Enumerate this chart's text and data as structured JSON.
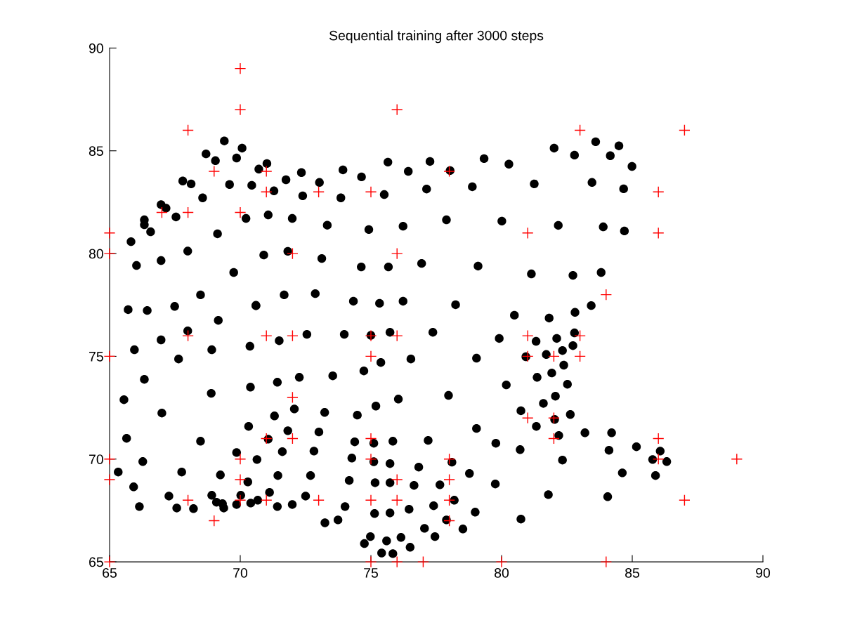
{
  "chart_data": {
    "type": "scatter",
    "title": "Sequential training after 3000 steps",
    "xlim": [
      65,
      90
    ],
    "ylim": [
      65,
      90
    ],
    "xticks": [
      65,
      70,
      75,
      80,
      85,
      90
    ],
    "yticks": [
      65,
      70,
      75,
      80,
      85,
      90
    ],
    "grid": false,
    "series": [
      {
        "color": "#000000",
        "marker": "circle",
        "x": [
          69.39,
          70.07,
          68.69,
          69.05,
          69.86,
          71.02,
          70.71,
          72.34,
          71.75,
          73.03,
          67.8,
          68.12,
          69.59,
          70.44,
          71.29,
          72.39,
          68.56,
          66.97,
          67.16,
          67.54,
          70.22,
          71.07,
          71.99,
          66.33,
          66.33,
          66.57,
          65.82,
          69.13,
          66.03,
          66.97,
          67.99,
          70.9,
          71.82,
          73.12,
          69.75,
          68.48,
          70.6,
          71.68,
          72.87,
          73.33,
          73.93,
          75.65,
          77.26,
          79.33,
          80.28,
          74.64,
          76.43,
          78.03,
          77.13,
          78.88,
          81.25,
          73.85,
          75.51,
          74.92,
          76.23,
          77.89,
          80.01,
          74.63,
          75.67,
          76.94,
          79.1,
          81.14,
          74.33,
          75.33,
          76.23,
          78.24,
          82.01,
          83.6,
          84.49,
          82.79,
          84.16,
          84.99,
          83.46,
          84.67,
          82.17,
          83.89,
          84.7,
          82.73,
          83.81,
          83.43,
          82.81,
          65.71,
          66.44,
          67.49,
          70.6,
          69.16,
          67.99,
          66.97,
          70.37,
          71.49,
          72.55,
          65.95,
          67.64,
          68.91,
          66.33,
          68.89,
          70.39,
          71.42,
          72.26,
          65.55,
          67.0,
          71.31,
          72.07,
          73.23,
          70.32,
          71.82,
          73.01,
          65.65,
          68.48,
          71.07,
          69.86,
          70.64,
          71.61,
          72.82,
          66.27,
          65.33,
          67.76,
          69.24,
          70.29,
          71.44,
          72.69,
          65.92,
          67.27,
          68.91,
          70.02,
          71.12,
          72.5,
          66.14,
          67.57,
          68.21,
          69.09,
          69.32,
          69.37,
          69.86,
          70.4,
          70.67,
          71.42,
          71.99,
          73.24,
          73.98,
          75.0,
          75.73,
          77.37,
          79.91,
          81.32,
          76.53,
          75.38,
          74.73,
          79.04,
          80.93,
          73.54,
          81.36,
          80.18,
          77.97,
          76.05,
          75.19,
          74.48,
          80.74,
          81.6,
          81.33,
          79.04,
          79.78,
          80.71,
          74.38,
          75.11,
          75.84,
          77.19,
          74.27,
          75.11,
          75.73,
          76.83,
          78.1,
          74.17,
          75.16,
          75.73,
          76.65,
          77.64,
          78.77,
          79.76,
          74.01,
          75.14,
          75.73,
          76.46,
          77.4,
          78.19,
          78.99,
          80.74,
          73.74,
          77.89,
          77.05,
          78.52,
          77.45,
          74.98,
          74.75,
          75.6,
          76.15,
          76.5,
          75.41,
          75.84,
          80.49,
          81.82,
          82.79,
          82.11,
          82.73,
          82.33,
          81.71,
          82.38,
          81.92,
          82.52,
          82.06,
          82.63,
          82.03,
          82.19,
          83.19,
          84.21,
          85.16,
          84.11,
          86.07,
          85.78,
          86.32,
          82.33,
          84.62,
          85.89,
          81.79,
          84.06
        ],
        "values": [
          85.48,
          85.13,
          84.85,
          84.52,
          84.65,
          84.38,
          84.11,
          83.94,
          83.59,
          83.46,
          83.53,
          83.39,
          83.36,
          83.32,
          83.05,
          82.81,
          82.71,
          82.38,
          82.21,
          81.78,
          81.71,
          81.88,
          81.71,
          81.64,
          81.4,
          81.06,
          80.58,
          80.96,
          79.42,
          79.66,
          80.12,
          79.93,
          80.11,
          79.76,
          79.08,
          77.99,
          77.48,
          77.99,
          78.05,
          81.38,
          84.07,
          84.45,
          84.48,
          84.62,
          84.35,
          83.73,
          84.0,
          84.04,
          83.14,
          83.25,
          83.39,
          82.71,
          82.87,
          81.17,
          81.33,
          81.64,
          81.58,
          79.35,
          79.35,
          79.52,
          79.39,
          79.01,
          77.68,
          77.58,
          77.68,
          77.51,
          85.13,
          85.44,
          85.24,
          84.79,
          84.76,
          84.24,
          83.46,
          83.15,
          81.37,
          81.3,
          81.1,
          78.94,
          79.08,
          77.47,
          77.14,
          77.27,
          77.23,
          77.43,
          77.46,
          76.75,
          76.24,
          75.8,
          75.49,
          75.76,
          76.07,
          75.32,
          74.87,
          75.32,
          73.88,
          73.2,
          73.5,
          73.74,
          73.98,
          72.89,
          72.24,
          72.1,
          72.44,
          72.27,
          71.59,
          71.38,
          71.32,
          71.01,
          70.87,
          70.97,
          70.32,
          69.98,
          70.36,
          70.39,
          69.88,
          69.37,
          69.37,
          69.23,
          68.89,
          69.2,
          69.2,
          68.65,
          68.2,
          68.24,
          68.24,
          68.38,
          68.2,
          67.69,
          67.62,
          67.59,
          67.9,
          67.83,
          67.62,
          67.79,
          67.86,
          68.0,
          67.69,
          67.79,
          66.9,
          76.07,
          76.02,
          76.17,
          76.17,
          75.87,
          75.73,
          74.87,
          74.7,
          74.29,
          74.91,
          74.98,
          74.05,
          73.98,
          73.61,
          73.1,
          72.92,
          72.58,
          72.14,
          72.35,
          72.71,
          71.59,
          71.49,
          70.77,
          70.46,
          70.84,
          70.77,
          70.87,
          70.91,
          70.05,
          69.87,
          69.78,
          69.61,
          69.85,
          68.96,
          68.85,
          68.85,
          68.72,
          68.75,
          69.3,
          68.79,
          67.69,
          67.35,
          67.38,
          67.56,
          67.73,
          68.0,
          67.42,
          67.08,
          67.04,
          67.04,
          66.63,
          66.6,
          66.23,
          66.23,
          65.89,
          66.02,
          66.19,
          65.71,
          65.43,
          65.4,
          77.0,
          76.86,
          76.14,
          75.87,
          75.52,
          75.28,
          75.09,
          74.57,
          74.19,
          73.64,
          73.06,
          72.17,
          71.93,
          71.15,
          71.28,
          71.28,
          70.6,
          70.43,
          70.39,
          69.98,
          69.88,
          69.95,
          69.33,
          69.2,
          68.27,
          68.17
        ]
      },
      {
        "color": "#ff0000",
        "marker": "cross",
        "x": [
          70,
          70,
          76,
          68,
          83,
          87,
          69,
          71,
          78,
          71,
          73,
          75,
          86,
          67,
          68,
          70,
          65,
          81,
          86,
          65,
          72,
          76,
          84,
          68,
          71,
          72,
          75,
          76,
          81,
          83,
          65,
          75,
          81,
          82,
          83,
          72,
          81,
          82,
          71,
          72,
          75,
          82,
          86,
          65,
          70,
          75,
          78,
          86,
          89,
          65,
          70,
          76,
          78,
          68,
          70,
          71,
          73,
          75,
          76,
          78,
          87,
          69,
          78,
          65,
          75,
          76,
          77,
          80,
          84
        ],
        "values": [
          89,
          87,
          87,
          86,
          86,
          86,
          84,
          84,
          84,
          83,
          83,
          83,
          83,
          82,
          82,
          82,
          81,
          81,
          81,
          80,
          80,
          80,
          78,
          76,
          76,
          76,
          76,
          76,
          76,
          76,
          75,
          75,
          75,
          75,
          75,
          73,
          72,
          72,
          71,
          71,
          71,
          71,
          71,
          70,
          70,
          70,
          70,
          70,
          70,
          69,
          69,
          69,
          69,
          68,
          68,
          68,
          68,
          68,
          68,
          68,
          68,
          67,
          67,
          65,
          65,
          65,
          65,
          65,
          65
        ]
      }
    ]
  }
}
